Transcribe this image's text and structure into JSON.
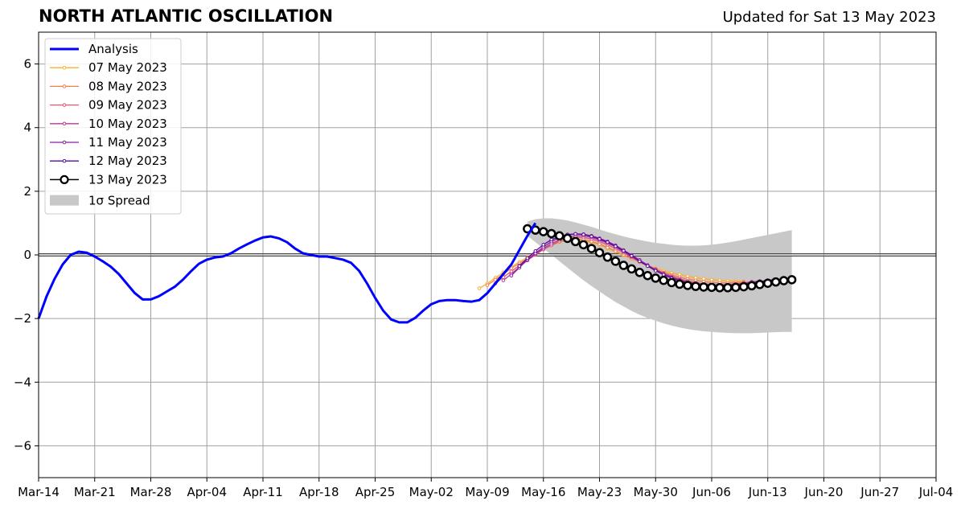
{
  "title": "NORTH ATLANTIC OSCILLATION",
  "updated": "Updated for Sat 13 May 2023",
  "colors": {
    "analysis": "#0000ff",
    "f0507": "#fcae2d",
    "f0508": "#f2804f",
    "f0509": "#dd5a76",
    "f0510": "#b73997",
    "f0511": "#8f1ca8",
    "f0512": "#5a0a9c",
    "f0513": "#000000",
    "spread": "#c8c8c8",
    "grid": "#a0a0a0"
  },
  "chart_data": {
    "type": "line",
    "title": "NORTH ATLANTIC OSCILLATION",
    "xlabel": "",
    "ylabel": "",
    "xlim_days": [
      0,
      112
    ],
    "ylim": [
      -7,
      7
    ],
    "grid": true,
    "legend_position": "top-left",
    "x_ticks": [
      {
        "day": 0,
        "label": "Mar-14"
      },
      {
        "day": 7,
        "label": "Mar-21"
      },
      {
        "day": 14,
        "label": "Mar-28"
      },
      {
        "day": 21,
        "label": "Apr-04"
      },
      {
        "day": 28,
        "label": "Apr-11"
      },
      {
        "day": 35,
        "label": "Apr-18"
      },
      {
        "day": 42,
        "label": "Apr-25"
      },
      {
        "day": 49,
        "label": "May-02"
      },
      {
        "day": 56,
        "label": "May-09"
      },
      {
        "day": 63,
        "label": "May-16"
      },
      {
        "day": 70,
        "label": "May-23"
      },
      {
        "day": 77,
        "label": "May-30"
      },
      {
        "day": 84,
        "label": "Jun-06"
      },
      {
        "day": 91,
        "label": "Jun-13"
      },
      {
        "day": 98,
        "label": "Jun-20"
      },
      {
        "day": 105,
        "label": "Jun-27"
      },
      {
        "day": 112,
        "label": "Jul-04"
      }
    ],
    "y_ticks": [
      {
        "value": 6,
        "label": "6"
      },
      {
        "value": 4,
        "label": "4"
      },
      {
        "value": 2,
        "label": "2"
      },
      {
        "value": 0,
        "label": "0"
      },
      {
        "value": -2,
        "label": "−2"
      },
      {
        "value": -4,
        "label": "−4"
      },
      {
        "value": -6,
        "label": "−6"
      }
    ],
    "legend": [
      {
        "label": "Analysis",
        "style": "thick",
        "color_key": "analysis"
      },
      {
        "label": "07 May 2023",
        "style": "marker",
        "color_key": "f0507"
      },
      {
        "label": "08 May 2023",
        "style": "marker",
        "color_key": "f0508"
      },
      {
        "label": "09 May 2023",
        "style": "marker",
        "color_key": "f0509"
      },
      {
        "label": "10 May 2023",
        "style": "marker",
        "color_key": "f0510"
      },
      {
        "label": "11 May 2023",
        "style": "marker",
        "color_key": "f0511"
      },
      {
        "label": "12 May 2023",
        "style": "marker",
        "color_key": "f0512"
      },
      {
        "label": "13 May 2023",
        "style": "big",
        "color_key": "f0513"
      },
      {
        "label": "1σ Spread",
        "style": "patch",
        "color_key": "spread"
      }
    ],
    "analysis": {
      "start_day": 0,
      "values": [
        -2.0,
        -1.3,
        -0.75,
        -0.3,
        0.0,
        0.1,
        0.07,
        -0.05,
        -0.2,
        -0.37,
        -0.6,
        -0.9,
        -1.2,
        -1.4,
        -1.4,
        -1.3,
        -1.15,
        -1.0,
        -0.78,
        -0.52,
        -0.28,
        -0.15,
        -0.08,
        -0.05,
        0.05,
        0.2,
        0.33,
        0.45,
        0.55,
        0.58,
        0.52,
        0.4,
        0.2,
        0.05,
        0.0,
        -0.05,
        -0.05,
        -0.1,
        -0.15,
        -0.25,
        -0.5,
        -0.9,
        -1.35,
        -1.75,
        -2.03,
        -2.12,
        -2.12,
        -1.98,
        -1.75,
        -1.55,
        -1.45,
        -1.42,
        -1.42,
        -1.45,
        -1.47,
        -1.42,
        -1.2,
        -0.9,
        -0.6,
        -0.3,
        0.15,
        0.6,
        1.0
      ]
    },
    "forecasts": [
      {
        "name": "07 May 2023",
        "color_key": "f0507",
        "start_day": 55,
        "values": [
          -1.05,
          -0.9,
          -0.72,
          -0.55,
          -0.38,
          -0.22,
          -0.08,
          0.05,
          0.2,
          0.3,
          0.4,
          0.45,
          0.48,
          0.45,
          0.4,
          0.32,
          0.2,
          0.1,
          -0.02,
          -0.12,
          -0.22,
          -0.32,
          -0.42,
          -0.5,
          -0.57,
          -0.62,
          -0.67,
          -0.72,
          -0.75,
          -0.78,
          -0.8,
          -0.82,
          -0.83,
          -0.83
        ]
      },
      {
        "name": "08 May 2023",
        "color_key": "f0508",
        "start_day": 56,
        "values": [
          -0.95,
          -0.78,
          -0.6,
          -0.42,
          -0.27,
          -0.12,
          0.05,
          0.2,
          0.33,
          0.43,
          0.48,
          0.5,
          0.48,
          0.42,
          0.34,
          0.23,
          0.12,
          0.0,
          -0.11,
          -0.23,
          -0.34,
          -0.45,
          -0.55,
          -0.63,
          -0.7,
          -0.76,
          -0.8,
          -0.84,
          -0.87,
          -0.88,
          -0.88,
          -0.87,
          -0.85
        ]
      },
      {
        "name": "09 May 2023",
        "color_key": "f0509",
        "start_day": 57,
        "values": [
          -0.9,
          -0.7,
          -0.52,
          -0.33,
          -0.17,
          0.0,
          0.17,
          0.3,
          0.42,
          0.5,
          0.55,
          0.55,
          0.5,
          0.42,
          0.32,
          0.2,
          0.07,
          -0.07,
          -0.2,
          -0.33,
          -0.45,
          -0.57,
          -0.67,
          -0.75,
          -0.82,
          -0.87,
          -0.91,
          -0.93,
          -0.94,
          -0.93,
          -0.91,
          -0.88,
          -0.84
        ]
      },
      {
        "name": "10 May 2023",
        "color_key": "f0510",
        "start_day": 58,
        "values": [
          -0.8,
          -0.6,
          -0.38,
          -0.17,
          0.02,
          0.2,
          0.35,
          0.47,
          0.56,
          0.6,
          0.6,
          0.55,
          0.47,
          0.37,
          0.25,
          0.1,
          -0.05,
          -0.2,
          -0.35,
          -0.48,
          -0.6,
          -0.7,
          -0.78,
          -0.85,
          -0.9,
          -0.93,
          -0.95,
          -0.95,
          -0.94,
          -0.92,
          -0.89,
          -0.85,
          -0.82
        ]
      },
      {
        "name": "11 May 2023",
        "color_key": "f0511",
        "start_day": 59,
        "values": [
          -0.65,
          -0.4,
          -0.15,
          0.05,
          0.25,
          0.42,
          0.55,
          0.63,
          0.66,
          0.65,
          0.6,
          0.52,
          0.42,
          0.3,
          0.15,
          0.0,
          -0.16,
          -0.32,
          -0.47,
          -0.6,
          -0.71,
          -0.8,
          -0.87,
          -0.92,
          -0.95,
          -0.97,
          -0.97,
          -0.96,
          -0.94,
          -0.91,
          -0.88,
          -0.84,
          -0.8
        ]
      },
      {
        "name": "12 May 2023",
        "color_key": "f0512",
        "start_day": 60,
        "values": [
          -0.35,
          -0.1,
          0.12,
          0.32,
          0.48,
          0.58,
          0.64,
          0.66,
          0.64,
          0.58,
          0.5,
          0.4,
          0.27,
          0.13,
          -0.03,
          -0.2,
          -0.35,
          -0.5,
          -0.62,
          -0.73,
          -0.82,
          -0.88,
          -0.93,
          -0.96,
          -0.98,
          -0.98,
          -0.97,
          -0.95,
          -0.92,
          -0.88,
          -0.84,
          -0.8,
          -0.77
        ]
      },
      {
        "name": "13 May 2023",
        "color_key": "f0513",
        "start_day": 61,
        "values": [
          0.82,
          0.78,
          0.73,
          0.67,
          0.6,
          0.52,
          0.42,
          0.32,
          0.2,
          0.07,
          -0.07,
          -0.2,
          -0.33,
          -0.44,
          -0.55,
          -0.65,
          -0.73,
          -0.8,
          -0.87,
          -0.92,
          -0.96,
          -0.99,
          -1.01,
          -1.02,
          -1.03,
          -1.03,
          -1.02,
          -1.0,
          -0.97,
          -0.93,
          -0.89,
          -0.85,
          -0.81,
          -0.78
        ]
      }
    ],
    "spread": {
      "start_day": 61,
      "upper": [
        1.05,
        1.12,
        1.15,
        1.15,
        1.12,
        1.08,
        1.02,
        0.95,
        0.88,
        0.8,
        0.72,
        0.65,
        0.58,
        0.52,
        0.47,
        0.42,
        0.38,
        0.35,
        0.32,
        0.3,
        0.29,
        0.29,
        0.3,
        0.32,
        0.35,
        0.39,
        0.43,
        0.48,
        0.53,
        0.58,
        0.63,
        0.68,
        0.73,
        0.78
      ],
      "lower": [
        0.6,
        0.4,
        0.2,
        0.0,
        -0.2,
        -0.4,
        -0.6,
        -0.8,
        -0.98,
        -1.15,
        -1.32,
        -1.48,
        -1.62,
        -1.76,
        -1.88,
        -1.98,
        -2.07,
        -2.15,
        -2.22,
        -2.28,
        -2.33,
        -2.37,
        -2.4,
        -2.42,
        -2.44,
        -2.45,
        -2.46,
        -2.46,
        -2.46,
        -2.45,
        -2.44,
        -2.43,
        -2.42,
        -2.42
      ]
    }
  }
}
